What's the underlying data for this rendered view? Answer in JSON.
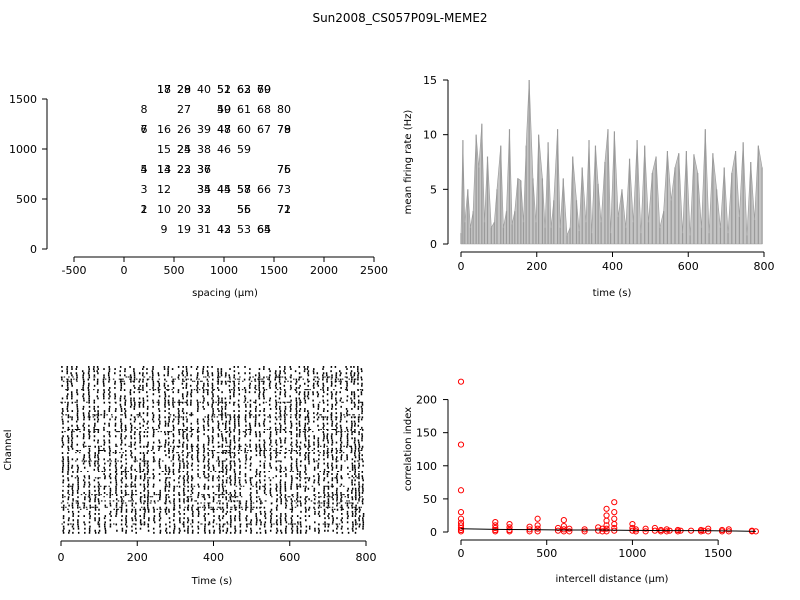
{
  "title": "Sun2008_CS057P09L-MEME2",
  "chart_data": [
    {
      "type": "scatter",
      "panel": "electrode-layout",
      "xlabel": "spacing (µm)",
      "ylabel": "",
      "xlim": [
        -500,
        2500
      ],
      "ylim": [
        0,
        1500
      ],
      "xticks": [
        "-500",
        "0",
        "500",
        "1000",
        "1500",
        "2000",
        "2500"
      ],
      "yticks": [
        "0",
        "500",
        "1000",
        "1500"
      ],
      "labels": [
        {
          "text": "17",
          "x": 400,
          "y": 1600
        },
        {
          "text": "18",
          "x": 400,
          "y": 1600
        },
        {
          "text": "28",
          "x": 600,
          "y": 1600
        },
        {
          "text": "29",
          "x": 600,
          "y": 1600
        },
        {
          "text": "40",
          "x": 800,
          "y": 1600
        },
        {
          "text": "51",
          "x": 1000,
          "y": 1600
        },
        {
          "text": "52",
          "x": 1000,
          "y": 1600
        },
        {
          "text": "62",
          "x": 1200,
          "y": 1600
        },
        {
          "text": "63",
          "x": 1200,
          "y": 1600
        },
        {
          "text": "69",
          "x": 1400,
          "y": 1600
        },
        {
          "text": "70",
          "x": 1400,
          "y": 1600
        },
        {
          "text": "8",
          "x": 200,
          "y": 1400
        },
        {
          "text": "27",
          "x": 600,
          "y": 1400
        },
        {
          "text": "49",
          "x": 1000,
          "y": 1400
        },
        {
          "text": "50",
          "x": 1000,
          "y": 1400
        },
        {
          "text": "61",
          "x": 1200,
          "y": 1400
        },
        {
          "text": "68",
          "x": 1400,
          "y": 1400
        },
        {
          "text": "80",
          "x": 1600,
          "y": 1400
        },
        {
          "text": "6",
          "x": 200,
          "y": 1200
        },
        {
          "text": "7",
          "x": 200,
          "y": 1200
        },
        {
          "text": "16",
          "x": 400,
          "y": 1200
        },
        {
          "text": "26",
          "x": 600,
          "y": 1200
        },
        {
          "text": "39",
          "x": 800,
          "y": 1200
        },
        {
          "text": "47",
          "x": 1000,
          "y": 1200
        },
        {
          "text": "48",
          "x": 1000,
          "y": 1200
        },
        {
          "text": "60",
          "x": 1200,
          "y": 1200
        },
        {
          "text": "67",
          "x": 1400,
          "y": 1200
        },
        {
          "text": "78",
          "x": 1600,
          "y": 1200
        },
        {
          "text": "79",
          "x": 1600,
          "y": 1200
        },
        {
          "text": "15",
          "x": 400,
          "y": 1000
        },
        {
          "text": "24",
          "x": 600,
          "y": 1000
        },
        {
          "text": "25",
          "x": 600,
          "y": 1000
        },
        {
          "text": "38",
          "x": 800,
          "y": 1000
        },
        {
          "text": "46",
          "x": 1000,
          "y": 1000
        },
        {
          "text": "59",
          "x": 1200,
          "y": 1000
        },
        {
          "text": "4",
          "x": 200,
          "y": 800
        },
        {
          "text": "5",
          "x": 200,
          "y": 800
        },
        {
          "text": "13",
          "x": 400,
          "y": 800
        },
        {
          "text": "14",
          "x": 400,
          "y": 800
        },
        {
          "text": "22",
          "x": 600,
          "y": 800
        },
        {
          "text": "23",
          "x": 600,
          "y": 800
        },
        {
          "text": "36",
          "x": 800,
          "y": 800
        },
        {
          "text": "37",
          "x": 800,
          "y": 800
        },
        {
          "text": "75",
          "x": 1600,
          "y": 800
        },
        {
          "text": "76",
          "x": 1600,
          "y": 800
        },
        {
          "text": "3",
          "x": 200,
          "y": 600
        },
        {
          "text": "12",
          "x": 400,
          "y": 600
        },
        {
          "text": "34",
          "x": 800,
          "y": 600
        },
        {
          "text": "35",
          "x": 800,
          "y": 600
        },
        {
          "text": "44",
          "x": 1000,
          "y": 600
        },
        {
          "text": "45",
          "x": 1000,
          "y": 600
        },
        {
          "text": "57",
          "x": 1200,
          "y": 600
        },
        {
          "text": "58",
          "x": 1200,
          "y": 600
        },
        {
          "text": "66",
          "x": 1400,
          "y": 600
        },
        {
          "text": "73",
          "x": 1600,
          "y": 600
        },
        {
          "text": "1",
          "x": 200,
          "y": 400
        },
        {
          "text": "2",
          "x": 200,
          "y": 400
        },
        {
          "text": "10",
          "x": 400,
          "y": 400
        },
        {
          "text": "20",
          "x": 600,
          "y": 400
        },
        {
          "text": "32",
          "x": 800,
          "y": 400
        },
        {
          "text": "33",
          "x": 800,
          "y": 400
        },
        {
          "text": "55",
          "x": 1200,
          "y": 400
        },
        {
          "text": "56",
          "x": 1200,
          "y": 400
        },
        {
          "text": "71",
          "x": 1600,
          "y": 400
        },
        {
          "text": "72",
          "x": 1600,
          "y": 400
        },
        {
          "text": "9",
          "x": 400,
          "y": 200
        },
        {
          "text": "19",
          "x": 600,
          "y": 200
        },
        {
          "text": "31",
          "x": 800,
          "y": 200
        },
        {
          "text": "42",
          "x": 1000,
          "y": 200
        },
        {
          "text": "43",
          "x": 1000,
          "y": 200
        },
        {
          "text": "53",
          "x": 1200,
          "y": 200
        },
        {
          "text": "64",
          "x": 1400,
          "y": 200
        },
        {
          "text": "65",
          "x": 1400,
          "y": 200
        }
      ]
    },
    {
      "type": "area",
      "panel": "firing-rate",
      "xlabel": "time (s)",
      "ylabel": "mean firing rate (Hz)",
      "xlim": [
        0,
        800
      ],
      "ylim": [
        0,
        15
      ],
      "xticks": [
        "0",
        "200",
        "400",
        "600",
        "800"
      ],
      "yticks": [
        "0",
        "5",
        "10",
        "15"
      ],
      "color": "#9a9a9a",
      "x": [
        0,
        5,
        10,
        18,
        25,
        32,
        40,
        47,
        55,
        62,
        70,
        80,
        88,
        95,
        105,
        112,
        120,
        128,
        135,
        142,
        150,
        158,
        165,
        172,
        180,
        190,
        198,
        205,
        215,
        222,
        230,
        238,
        245,
        255,
        262,
        270,
        280,
        288,
        295,
        305,
        312,
        320,
        330,
        338,
        345,
        355,
        362,
        370,
        380,
        388,
        395,
        405,
        415,
        425,
        435,
        445,
        455,
        465,
        475,
        485,
        495,
        505,
        515,
        525,
        535,
        545,
        555,
        565,
        575,
        585,
        595,
        605,
        615,
        625,
        635,
        645,
        655,
        665,
        675,
        685,
        695,
        705,
        715,
        725,
        735,
        745,
        755,
        765,
        775,
        785,
        795
      ],
      "y": [
        1,
        9.5,
        2,
        5,
        1.5,
        3,
        10,
        7,
        11,
        2,
        8,
        1.5,
        2,
        5,
        9,
        1.5,
        3,
        10.5,
        1.8,
        3,
        6,
        5.8,
        2,
        9,
        15,
        6,
        2,
        10,
        6,
        1.5,
        9.3,
        1.5,
        4,
        10.5,
        1.5,
        6,
        0.8,
        1.5,
        8,
        4,
        1.2,
        7,
        2,
        9.5,
        1,
        9,
        5.5,
        2,
        7.5,
        10.5,
        1,
        10.3,
        2.5,
        5,
        1.5,
        7.8,
        2,
        9.5,
        1,
        9,
        2,
        6.5,
        8,
        1.5,
        3,
        8.5,
        4,
        7,
        8.3,
        1,
        8.5,
        0.8,
        8.2,
        6.5,
        1.5,
        10.5,
        1,
        8.3,
        5,
        1.5,
        7,
        1,
        6.5,
        8.5,
        2.5,
        9.3,
        0.8,
        7.5,
        2.2,
        9,
        7
      ]
    },
    {
      "type": "raster",
      "panel": "spike-raster",
      "xlabel": "Time (s)",
      "ylabel": "Channel",
      "xlim": [
        0,
        800
      ],
      "xticks": [
        "0",
        "200",
        "400",
        "600",
        "800"
      ],
      "channels": 80,
      "color": "#000000"
    },
    {
      "type": "scatter",
      "panel": "correlation",
      "xlabel": "intercell distance (µm)",
      "ylabel": "correlation index",
      "xlim": [
        0,
        1750
      ],
      "ylim": [
        0,
        225
      ],
      "xticks": [
        "0",
        "500",
        "1000",
        "1500"
      ],
      "yticks": [
        "0",
        "50",
        "100",
        "150",
        "200"
      ],
      "point_color": "#ff0000",
      "fit_color": "#000000",
      "points": [
        {
          "x": 0,
          "y": 227
        },
        {
          "x": 0,
          "y": 132
        },
        {
          "x": 0,
          "y": 63
        },
        {
          "x": 0,
          "y": 30
        },
        {
          "x": 0,
          "y": 20
        },
        {
          "x": 0,
          "y": 14
        },
        {
          "x": 0,
          "y": 10
        },
        {
          "x": 0,
          "y": 6
        },
        {
          "x": 0,
          "y": 3
        },
        {
          "x": 0,
          "y": 1
        },
        {
          "x": 200,
          "y": 15
        },
        {
          "x": 200,
          "y": 10
        },
        {
          "x": 200,
          "y": 6
        },
        {
          "x": 200,
          "y": 3
        },
        {
          "x": 200,
          "y": 1
        },
        {
          "x": 283,
          "y": 12
        },
        {
          "x": 283,
          "y": 7
        },
        {
          "x": 283,
          "y": 3
        },
        {
          "x": 283,
          "y": 1
        },
        {
          "x": 400,
          "y": 8
        },
        {
          "x": 400,
          "y": 4
        },
        {
          "x": 400,
          "y": 1
        },
        {
          "x": 447,
          "y": 20
        },
        {
          "x": 447,
          "y": 10
        },
        {
          "x": 447,
          "y": 5
        },
        {
          "x": 447,
          "y": 1
        },
        {
          "x": 566,
          "y": 6
        },
        {
          "x": 566,
          "y": 2
        },
        {
          "x": 600,
          "y": 18
        },
        {
          "x": 600,
          "y": 9
        },
        {
          "x": 600,
          "y": 4
        },
        {
          "x": 600,
          "y": 1
        },
        {
          "x": 632,
          "y": 5
        },
        {
          "x": 632,
          "y": 1
        },
        {
          "x": 721,
          "y": 4
        },
        {
          "x": 721,
          "y": 1
        },
        {
          "x": 800,
          "y": 7
        },
        {
          "x": 800,
          "y": 2
        },
        {
          "x": 825,
          "y": 5
        },
        {
          "x": 825,
          "y": 1
        },
        {
          "x": 849,
          "y": 35
        },
        {
          "x": 849,
          "y": 25
        },
        {
          "x": 849,
          "y": 17
        },
        {
          "x": 849,
          "y": 10
        },
        {
          "x": 849,
          "y": 5
        },
        {
          "x": 849,
          "y": 1
        },
        {
          "x": 894,
          "y": 45
        },
        {
          "x": 894,
          "y": 30
        },
        {
          "x": 894,
          "y": 20
        },
        {
          "x": 894,
          "y": 12
        },
        {
          "x": 894,
          "y": 6
        },
        {
          "x": 894,
          "y": 2
        },
        {
          "x": 1000,
          "y": 12
        },
        {
          "x": 1000,
          "y": 6
        },
        {
          "x": 1000,
          "y": 2
        },
        {
          "x": 1020,
          "y": 4
        },
        {
          "x": 1020,
          "y": 1
        },
        {
          "x": 1077,
          "y": 5
        },
        {
          "x": 1077,
          "y": 1
        },
        {
          "x": 1131,
          "y": 6
        },
        {
          "x": 1131,
          "y": 2
        },
        {
          "x": 1166,
          "y": 3
        },
        {
          "x": 1166,
          "y": 1
        },
        {
          "x": 1200,
          "y": 4
        },
        {
          "x": 1200,
          "y": 1
        },
        {
          "x": 1217,
          "y": 2
        },
        {
          "x": 1265,
          "y": 3
        },
        {
          "x": 1265,
          "y": 1
        },
        {
          "x": 1281,
          "y": 2
        },
        {
          "x": 1342,
          "y": 2
        },
        {
          "x": 1400,
          "y": 3
        },
        {
          "x": 1400,
          "y": 1
        },
        {
          "x": 1414,
          "y": 2
        },
        {
          "x": 1442,
          "y": 5
        },
        {
          "x": 1442,
          "y": 1
        },
        {
          "x": 1523,
          "y": 3
        },
        {
          "x": 1523,
          "y": 1
        },
        {
          "x": 1562,
          "y": 4
        },
        {
          "x": 1562,
          "y": 1
        },
        {
          "x": 1697,
          "y": 2
        },
        {
          "x": 1697,
          "y": 1
        },
        {
          "x": 1720,
          "y": 1
        }
      ],
      "fit": [
        {
          "x": 0,
          "y": 5
        },
        {
          "x": 200,
          "y": 4
        },
        {
          "x": 400,
          "y": 3.5
        },
        {
          "x": 600,
          "y": 3
        },
        {
          "x": 800,
          "y": 3
        },
        {
          "x": 1000,
          "y": 2.5
        },
        {
          "x": 1200,
          "y": 2
        },
        {
          "x": 1400,
          "y": 2
        },
        {
          "x": 1600,
          "y": 1.5
        },
        {
          "x": 1720,
          "y": 1
        }
      ]
    }
  ]
}
